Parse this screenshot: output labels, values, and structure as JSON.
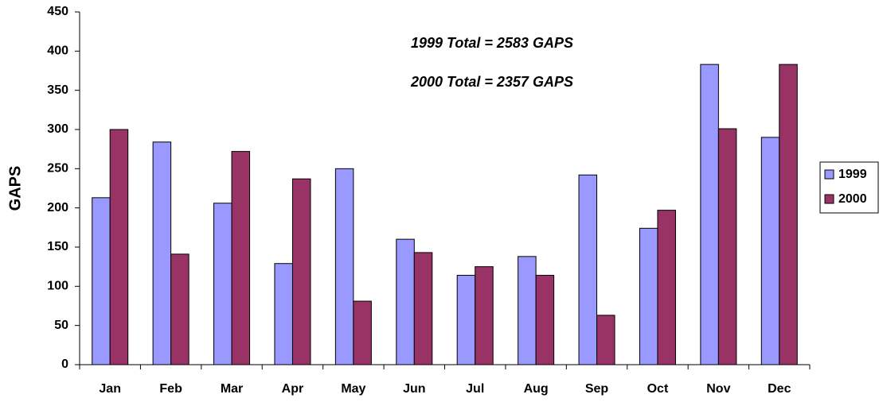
{
  "chart_data": {
    "type": "bar",
    "y_label": "GAPS",
    "annotations": [
      "1999 Total = 2583 GAPS",
      "2000 Total = 2357 GAPS"
    ],
    "categories": [
      "Jan",
      "Feb",
      "Mar",
      "Apr",
      "May",
      "Jun",
      "Jul",
      "Aug",
      "Sep",
      "Oct",
      "Nov",
      "Dec"
    ],
    "series": [
      {
        "name": "1999",
        "color": "#9999ff",
        "values": [
          213,
          284,
          206,
          129,
          250,
          160,
          114,
          138,
          242,
          174,
          383,
          290
        ]
      },
      {
        "name": "2000",
        "color": "#993366",
        "values": [
          300,
          141,
          272,
          237,
          81,
          143,
          125,
          114,
          63,
          197,
          301,
          383
        ]
      }
    ],
    "ylim": [
      0,
      450
    ],
    "yticks": [
      0,
      50,
      100,
      150,
      200,
      250,
      300,
      350,
      400,
      450
    ],
    "grid": false,
    "legend": "right"
  }
}
